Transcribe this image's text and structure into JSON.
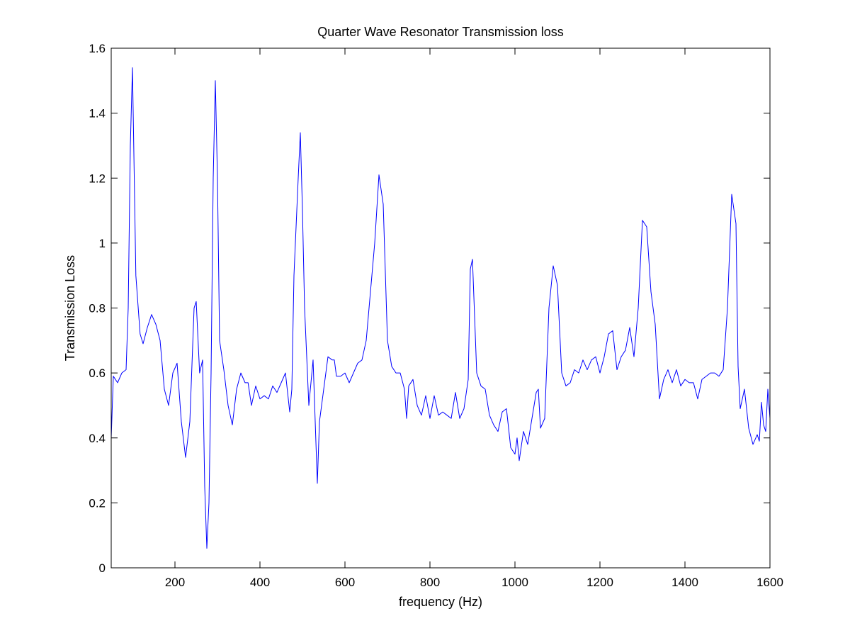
{
  "chart_data": {
    "type": "line",
    "title": "Quarter Wave Resonator Transmission loss",
    "xlabel": "frequency (Hz)",
    "ylabel": "Transmission Loss",
    "xlim": [
      50,
      1600
    ],
    "ylim": [
      0,
      1.6
    ],
    "xticks": [
      200,
      400,
      600,
      800,
      1000,
      1200,
      1400,
      1600
    ],
    "xtick_labels": [
      "200",
      "400",
      "600",
      "800",
      "1000",
      "1200",
      "1400",
      "1600"
    ],
    "yticks": [
      0,
      0.2,
      0.4,
      0.6,
      0.8,
      1,
      1.2,
      1.4,
      1.6
    ],
    "ytick_labels": [
      "0",
      "0.2",
      "0.4",
      "0.6",
      "0.8",
      "1",
      "1.2",
      "1.4",
      "1.6"
    ],
    "grid": false,
    "line_color": "#0000ff",
    "series": [
      {
        "x": [
          50,
          55,
          65,
          75,
          85,
          90,
          95,
          100,
          108,
          118,
          125,
          135,
          145,
          155,
          165,
          175,
          185,
          195,
          205,
          215,
          225,
          235,
          245,
          250,
          258,
          265,
          270,
          275,
          280,
          285,
          290,
          295,
          300,
          305,
          315,
          325,
          335,
          345,
          355,
          365,
          372,
          380,
          390,
          400,
          410,
          420,
          430,
          440,
          450,
          460,
          470,
          475,
          480,
          490,
          495,
          500,
          505,
          515,
          525,
          530,
          535,
          540,
          550,
          560,
          570,
          575,
          580,
          590,
          600,
          610,
          620,
          630,
          640,
          650,
          660,
          670,
          680,
          690,
          700,
          710,
          720,
          730,
          740,
          745,
          750,
          760,
          770,
          780,
          790,
          800,
          810,
          820,
          830,
          840,
          850,
          860,
          870,
          880,
          890,
          895,
          900,
          910,
          920,
          930,
          940,
          950,
          960,
          970,
          980,
          990,
          1000,
          1005,
          1010,
          1020,
          1030,
          1040,
          1050,
          1055,
          1060,
          1070,
          1080,
          1090,
          1100,
          1110,
          1120,
          1130,
          1140,
          1150,
          1160,
          1170,
          1180,
          1190,
          1200,
          1210,
          1220,
          1230,
          1240,
          1250,
          1260,
          1270,
          1280,
          1290,
          1300,
          1310,
          1320,
          1330,
          1340,
          1350,
          1360,
          1370,
          1380,
          1390,
          1400,
          1410,
          1420,
          1430,
          1440,
          1450,
          1460,
          1470,
          1480,
          1490,
          1500,
          1510,
          1520,
          1525,
          1530,
          1540,
          1550,
          1560,
          1570,
          1575,
          1580,
          1585,
          1590,
          1595,
          1600
        ],
        "values": [
          0.4,
          0.59,
          0.57,
          0.6,
          0.61,
          0.8,
          1.3,
          1.54,
          0.9,
          0.72,
          0.69,
          0.74,
          0.78,
          0.75,
          0.7,
          0.55,
          0.5,
          0.6,
          0.63,
          0.45,
          0.34,
          0.45,
          0.8,
          0.82,
          0.6,
          0.64,
          0.25,
          0.06,
          0.2,
          0.6,
          1.2,
          1.5,
          1.2,
          0.7,
          0.61,
          0.5,
          0.44,
          0.55,
          0.6,
          0.57,
          0.57,
          0.5,
          0.56,
          0.52,
          0.53,
          0.52,
          0.56,
          0.54,
          0.57,
          0.6,
          0.48,
          0.55,
          0.9,
          1.2,
          1.34,
          1.1,
          0.8,
          0.5,
          0.64,
          0.45,
          0.26,
          0.45,
          0.55,
          0.65,
          0.64,
          0.64,
          0.59,
          0.59,
          0.6,
          0.57,
          0.6,
          0.63,
          0.64,
          0.7,
          0.85,
          1.0,
          1.21,
          1.12,
          0.7,
          0.62,
          0.6,
          0.6,
          0.55,
          0.46,
          0.56,
          0.58,
          0.5,
          0.47,
          0.53,
          0.46,
          0.53,
          0.47,
          0.48,
          0.47,
          0.46,
          0.54,
          0.46,
          0.49,
          0.58,
          0.92,
          0.95,
          0.6,
          0.56,
          0.55,
          0.47,
          0.44,
          0.42,
          0.48,
          0.49,
          0.37,
          0.35,
          0.4,
          0.33,
          0.42,
          0.38,
          0.46,
          0.54,
          0.55,
          0.43,
          0.46,
          0.8,
          0.93,
          0.87,
          0.6,
          0.56,
          0.57,
          0.61,
          0.6,
          0.64,
          0.61,
          0.64,
          0.65,
          0.6,
          0.65,
          0.72,
          0.73,
          0.61,
          0.65,
          0.67,
          0.74,
          0.65,
          0.8,
          1.07,
          1.05,
          0.85,
          0.75,
          0.52,
          0.58,
          0.61,
          0.57,
          0.61,
          0.56,
          0.58,
          0.57,
          0.57,
          0.52,
          0.58,
          0.59,
          0.6,
          0.6,
          0.59,
          0.61,
          0.8,
          1.15,
          1.06,
          0.62,
          0.49,
          0.55,
          0.43,
          0.38,
          0.41,
          0.39,
          0.51,
          0.44,
          0.42,
          0.55,
          0.46
        ]
      }
    ]
  }
}
